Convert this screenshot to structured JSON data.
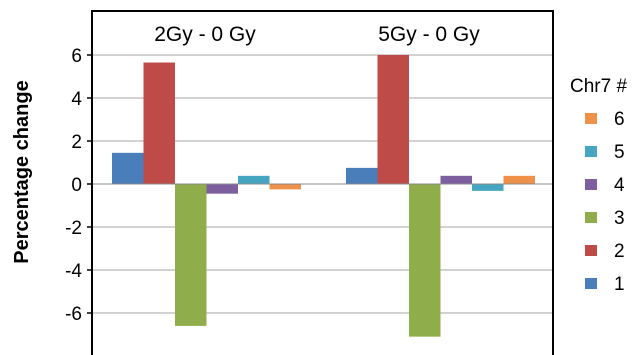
{
  "chart_data": {
    "type": "bar",
    "title": "",
    "xlabel": "",
    "ylabel": "Percentage change",
    "ylim": [
      -7.5,
      8.1
    ],
    "yticks": [
      6,
      4,
      2,
      0,
      -2,
      -4,
      -6
    ],
    "ytick_labels": [
      "6",
      "4",
      "2",
      "0",
      "-2",
      "-4",
      "-6"
    ],
    "grid": true,
    "categories": [
      "2Gy - 0 Gy",
      "5Gy - 0 Gy"
    ],
    "legend": {
      "title": "Chr7 #",
      "placement": "right"
    },
    "series": [
      {
        "name": "1",
        "color": "#4a7ebb",
        "values": [
          1.45,
          0.75
        ]
      },
      {
        "name": "2",
        "color": "#be4b48",
        "values": [
          5.65,
          6.0
        ]
      },
      {
        "name": "3",
        "color": "#8fad4a",
        "values": [
          -6.6,
          -7.1
        ]
      },
      {
        "name": "4",
        "color": "#7d5fa0",
        "values": [
          -0.45,
          0.38
        ]
      },
      {
        "name": "5",
        "color": "#46a5c0",
        "values": [
          0.38,
          -0.32
        ]
      },
      {
        "name": "6",
        "color": "#f0914a",
        "values": [
          -0.25,
          0.38
        ]
      }
    ]
  }
}
